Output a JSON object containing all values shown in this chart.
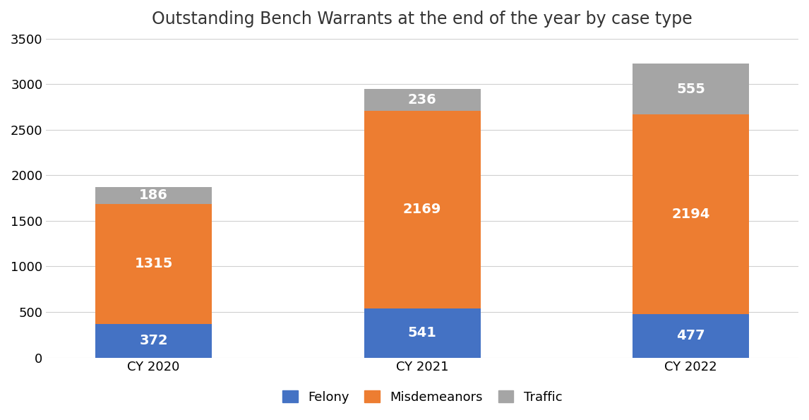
{
  "title": "Outstanding Bench Warrants at the end of the year by case type",
  "categories": [
    "CY 2020",
    "CY 2021",
    "CY 2022"
  ],
  "felony": [
    372,
    541,
    477
  ],
  "misdemeanors": [
    1315,
    2169,
    2194
  ],
  "traffic": [
    186,
    236,
    555
  ],
  "felony_color": "#4472C4",
  "misdemeanors_color": "#ED7D31",
  "traffic_color": "#A5A5A5",
  "background_color": "#FFFFFF",
  "ylim": [
    0,
    3500
  ],
  "yticks": [
    0,
    500,
    1000,
    1500,
    2000,
    2500,
    3000,
    3500
  ],
  "bar_width": 0.65,
  "label_fontsize": 14,
  "title_fontsize": 17,
  "tick_fontsize": 13,
  "legend_fontsize": 13
}
